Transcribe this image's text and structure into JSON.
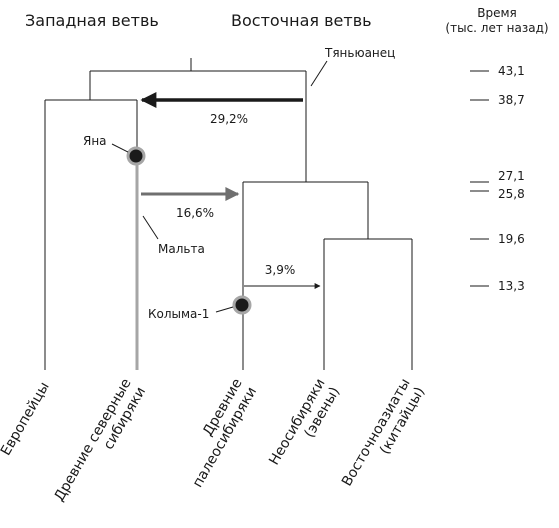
{
  "headers": {
    "west": "Западная ветвь",
    "east": "Восточная ветвь",
    "time_line1": "Время",
    "time_line2": "(тыс. лет назад)"
  },
  "time_ticks": [
    "43,1",
    "38,7",
    "27,1",
    "25,8",
    "19,6",
    "13,3"
  ],
  "samples": {
    "tianyuan": "Тяньюанец",
    "yana": "Яна",
    "malta": "Мальта",
    "kolyma": "Колыма-1"
  },
  "gene_flow": {
    "arrow1": "29,2%",
    "arrow2": "16,6%",
    "arrow3": "3,9%"
  },
  "leaves": {
    "europeans": "Европейцы",
    "ancient_north_siberians_1": "Древние северные",
    "ancient_north_siberians_2": "сибиряки",
    "ancient_paleosiberians_1": "Древние",
    "ancient_paleosiberians_2": "палеосибиряки",
    "neosiberians_1": "Неосибиряки",
    "neosiberians_2": "(эвены)",
    "east_asians_1": "Восточноазиаты",
    "east_asians_2": "(китайцы)"
  },
  "colors": {
    "line": "#1a1a1a",
    "arrow_dark": "#1a1a1a",
    "arrow_gray": "#6f6f6f",
    "ans_branch": "#a6a6a6"
  }
}
